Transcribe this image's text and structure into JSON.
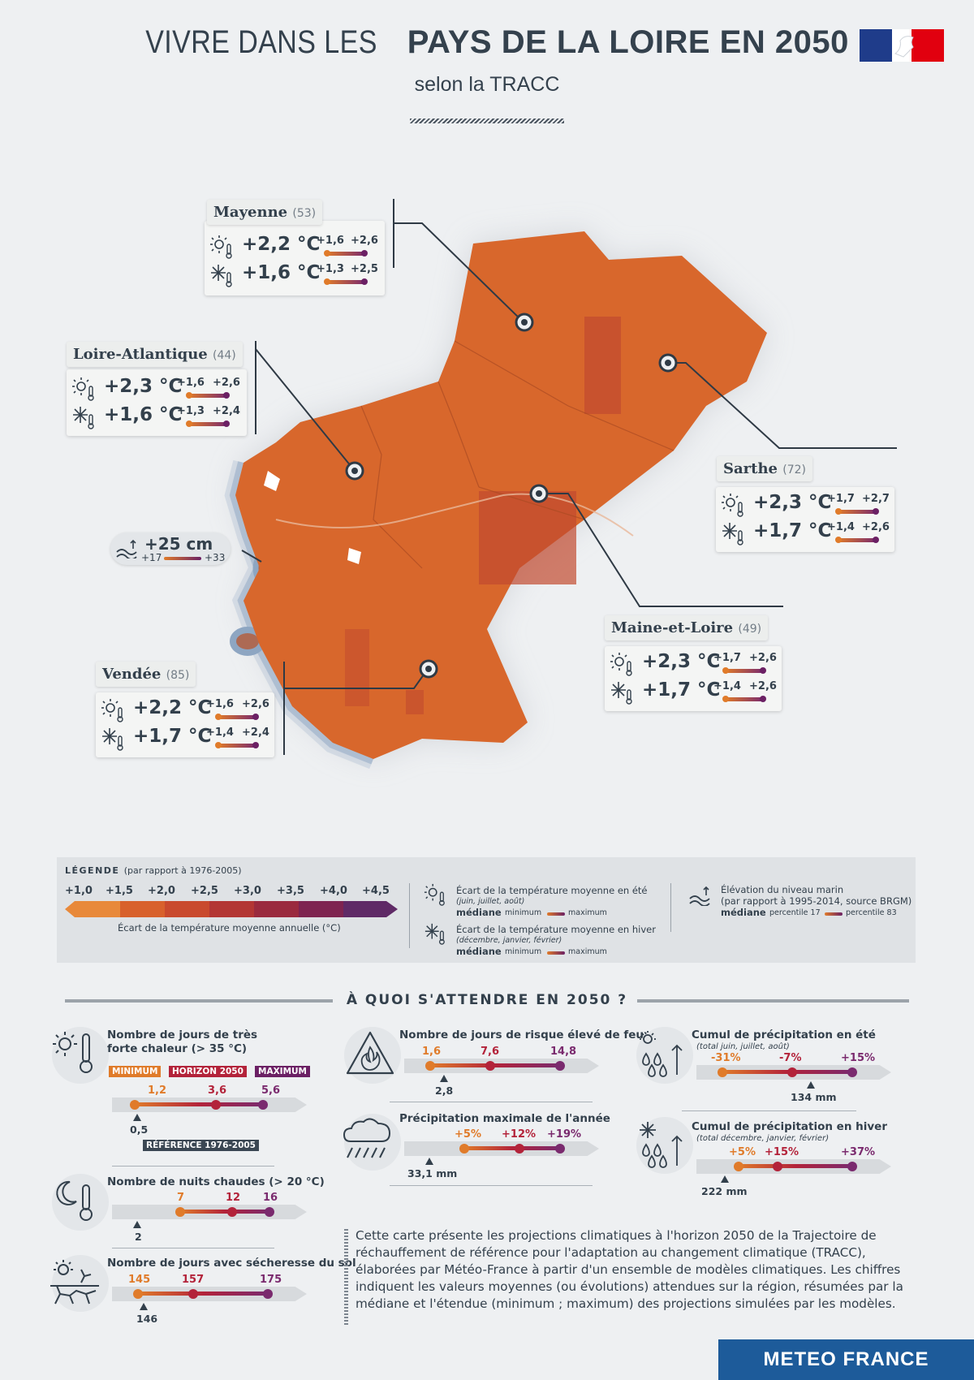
{
  "header": {
    "title_light": "VIVRE DANS LES",
    "title_bold": "PAYS DE LA LOIRE EN 2050",
    "subtitle": "selon la TRACC"
  },
  "departments": [
    {
      "name": "Mayenne",
      "code": "(53)",
      "summer": {
        "median": "+2,2 °C",
        "min": "+1,6",
        "max": "+2,6"
      },
      "winter": {
        "median": "+1,6 °C",
        "min": "+1,3",
        "max": "+2,5"
      }
    },
    {
      "name": "Loire-Atlantique",
      "code": "(44)",
      "summer": {
        "median": "+2,3 °C",
        "min": "+1,6",
        "max": "+2,6"
      },
      "winter": {
        "median": "+1,6 °C",
        "min": "+1,3",
        "max": "+2,4"
      }
    },
    {
      "name": "Sarthe",
      "code": "(72)",
      "summer": {
        "median": "+2,3 °C",
        "min": "+1,7",
        "max": "+2,7"
      },
      "winter": {
        "median": "+1,7 °C",
        "min": "+1,4",
        "max": "+2,6"
      }
    },
    {
      "name": "Maine-et-Loire",
      "code": "(49)",
      "summer": {
        "median": "+2,3 °C",
        "min": "+1,7",
        "max": "+2,6"
      },
      "winter": {
        "median": "+1,7 °C",
        "min": "+1,4",
        "max": "+2,6"
      }
    },
    {
      "name": "Vendée",
      "code": "(85)",
      "summer": {
        "median": "+2,2 °C",
        "min": "+1,6",
        "max": "+2,6"
      },
      "winter": {
        "median": "+1,7 °C",
        "min": "+1,4",
        "max": "+2,4"
      }
    }
  ],
  "sea_level": {
    "median": "+25 cm",
    "p17": "+17",
    "p83": "+33"
  },
  "legend": {
    "title": "LÉGENDE",
    "title_note": "(par rapport à 1976-2005)",
    "scale_ticks": [
      "+1,0",
      "+1,5",
      "+2,0",
      "+2,5",
      "+3,0",
      "+3,5",
      "+4,0",
      "+4,5"
    ],
    "scale_caption": "Écart de la température moyenne annuelle (°C)",
    "summer_label": "Écart de la température moyenne en été",
    "summer_months": "(juin, juillet, août)",
    "winter_label": "Écart de la température moyenne en hiver",
    "winter_months": "(décembre, janvier, février)",
    "mediane": "médiane",
    "minimum": "minimum",
    "maximum": "maximum",
    "sea_label": "Élévation du niveau marin",
    "sea_note": "(par rapport à 1995-2014, source BRGM)",
    "percentile17": "percentile 17",
    "percentile83": "percentile 83",
    "colors": [
      "#e8893a",
      "#d8612c",
      "#c94a2e",
      "#b33634",
      "#9a2a3e",
      "#7e2450",
      "#5f2a66"
    ]
  },
  "section_title": "À QUOI S'ATTENDRE EN 2050 ?",
  "indicators": {
    "hot_days": {
      "title1": "Nombre de jours de très",
      "title2": "forte chaleur (> 35 °C)",
      "min": "1,2",
      "med": "3,6",
      "max": "5,6",
      "ref": "0,5",
      "tag_min": "MINIMUM",
      "tag_hor": "HORIZON 2050",
      "tag_max": "MAXIMUM",
      "tag_ref": "RÉFÉRENCE 1976-2005"
    },
    "warm_nights": {
      "title": "Nombre de nuits chaudes (> 20 °C)",
      "min": "7",
      "med": "12",
      "max": "16",
      "ref": "2"
    },
    "drought": {
      "title": "Nombre de jours avec sécheresse du sol",
      "min": "145",
      "med": "157",
      "max": "175",
      "ref": "146"
    },
    "fire": {
      "title": "Nombre de jours de risque élevé de feux",
      "min": "1,6",
      "med": "7,6",
      "max": "14,8",
      "ref": "2,8"
    },
    "max_precip": {
      "title": "Précipitation maximale de l'année",
      "min": "+5%",
      "med": "+12%",
      "max": "+19%",
      "ref": "33,1 mm"
    },
    "summer_precip": {
      "title": "Cumul de précipitation en été",
      "sub": "(total juin, juillet, août)",
      "min": "-31%",
      "med": "-7%",
      "max": "+15%",
      "ref": "134 mm"
    },
    "winter_precip": {
      "title": "Cumul de précipitation en hiver",
      "sub": "(total décembre, janvier, février)",
      "min": "+5%",
      "med": "+15%",
      "max": "+37%",
      "ref": "222 mm"
    }
  },
  "paragraph": "Cette carte présente les projections climatiques à l'horizon 2050 de la Trajectoire de réchauffement de référence pour l'adaptation au changement climatique (TRACC), élaborées par Météo-France à partir d'un ensemble de modèles climatiques. Les chiffres indiquent les valeurs moyennes (ou évolutions) attendues sur la région, résumées par la médiane et l'étendue (minimum ; maximum) des projections simulées par les modèles.",
  "footer_logo": "METEO FRANCE"
}
